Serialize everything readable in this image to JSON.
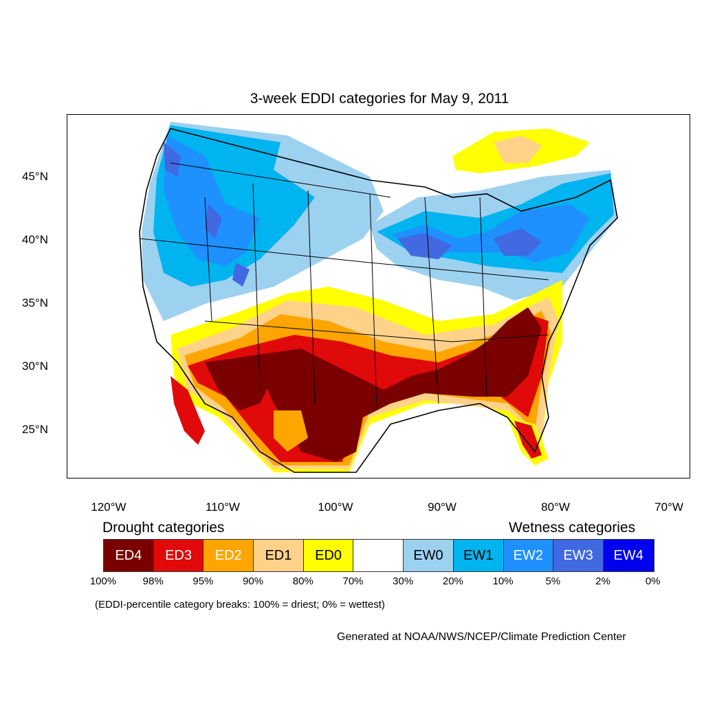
{
  "title": "3-week EDDI categories for May 9, 2011",
  "lat_ticks": [
    "45°N",
    "40°N",
    "35°N",
    "30°N",
    "25°N"
  ],
  "lon_ticks": [
    "120°W",
    "110°W",
    "100°W",
    "90°W",
    "80°W",
    "70°W"
  ],
  "legend": {
    "drought_title": "Drought categories",
    "wetness_title": "Wetness categories",
    "categories": [
      {
        "label": "ED4",
        "color": "#7a0000",
        "text_color": "#ffffff"
      },
      {
        "label": "ED3",
        "color": "#e00a0a",
        "text_color": "#ffffff"
      },
      {
        "label": "ED2",
        "color": "#ffa500",
        "text_color": "#ffffff"
      },
      {
        "label": "ED1",
        "color": "#ffd28a",
        "text_color": "#000000"
      },
      {
        "label": "ED0",
        "color": "#ffff00",
        "text_color": "#000000"
      },
      {
        "label": "",
        "color": "#ffffff",
        "text_color": "#000000"
      },
      {
        "label": "EW0",
        "color": "#9dd1f0",
        "text_color": "#000000"
      },
      {
        "label": "EW1",
        "color": "#00b4f0",
        "text_color": "#000000"
      },
      {
        "label": "EW2",
        "color": "#1e90ff",
        "text_color": "#ffffff"
      },
      {
        "label": "EW3",
        "color": "#4169e1",
        "text_color": "#ffffff"
      },
      {
        "label": "EW4",
        "color": "#0000ee",
        "text_color": "#ffffff"
      }
    ],
    "percentiles": [
      "100%",
      "98%",
      "95%",
      "90%",
      "80%",
      "70%",
      "30%",
      "20%",
      "10%",
      "5%",
      "2%",
      "0%"
    ]
  },
  "note": "(EDDI-percentile category breaks: 100% = driest; 0% = wettest)",
  "credit": "Generated at NOAA/NWS/NCEP/Climate Prediction Center"
}
